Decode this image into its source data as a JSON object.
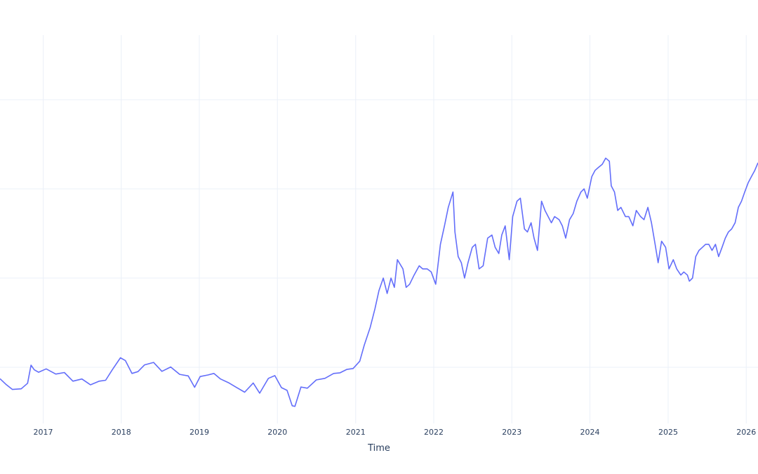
{
  "chart_data": {
    "type": "line",
    "title": "",
    "xlabel": "Time",
    "ylabel": "",
    "grid": true,
    "line_color": "#636efa",
    "x_tick_labels": [
      "2017",
      "2018",
      "2019",
      "2020",
      "2021",
      "2022",
      "2023",
      "2024",
      "2025",
      "2026"
    ],
    "xlim": [
      "2016-06-13",
      "2026-02-25"
    ],
    "ylim": [
      0,
      1
    ],
    "series": [
      {
        "x": [
          "2016-06-13",
          "2016-07-10",
          "2016-08-10",
          "2016-09-20",
          "2016-10-20",
          "2016-11-05",
          "2016-11-20",
          "2016-12-10",
          "2017-01-15",
          "2017-03-01",
          "2017-04-10",
          "2017-05-20",
          "2017-07-01",
          "2017-08-10",
          "2017-09-20",
          "2017-10-20",
          "2017-11-20",
          "2017-12-28",
          "2018-01-20",
          "2018-02-20",
          "2018-03-20",
          "2018-04-20",
          "2018-06-01",
          "2018-07-10",
          "2018-08-20",
          "2018-10-01",
          "2018-11-10",
          "2018-12-10",
          "2019-01-05",
          "2019-02-10",
          "2019-03-10",
          "2019-04-10",
          "2019-05-20",
          "2019-06-20",
          "2019-08-01",
          "2019-09-10",
          "2019-10-10",
          "2019-11-20",
          "2019-12-20",
          "2020-01-20",
          "2020-02-15",
          "2020-03-10",
          "2020-03-23",
          "2020-04-20",
          "2020-05-20",
          "2020-07-01",
          "2020-08-10",
          "2020-09-20",
          "2020-10-20",
          "2020-11-20",
          "2020-12-20",
          "2021-01-20",
          "2021-02-10",
          "2021-03-10",
          "2021-04-01",
          "2021-04-20",
          "2021-05-10",
          "2021-05-28",
          "2021-06-15",
          "2021-07-01",
          "2021-07-15",
          "2021-08-10",
          "2021-08-25",
          "2021-09-10",
          "2021-10-01",
          "2021-10-25",
          "2021-11-10",
          "2021-12-01",
          "2021-12-20",
          "2022-01-10",
          "2022-02-01",
          "2022-02-20",
          "2022-03-10",
          "2022-04-01",
          "2022-04-10",
          "2022-04-25",
          "2022-05-10",
          "2022-05-25",
          "2022-06-10",
          "2022-06-30",
          "2022-07-15",
          "2022-08-01",
          "2022-08-20",
          "2022-09-10",
          "2022-09-30",
          "2022-10-15",
          "2022-11-01",
          "2022-11-15",
          "2022-12-01",
          "2022-12-20",
          "2023-01-05",
          "2023-01-25",
          "2023-02-10",
          "2023-03-01",
          "2023-03-15",
          "2023-04-01",
          "2023-04-15",
          "2023-05-01",
          "2023-05-20",
          "2023-06-05",
          "2023-06-20",
          "2023-07-05",
          "2023-07-20",
          "2023-08-10",
          "2023-08-25",
          "2023-09-10",
          "2023-09-28",
          "2023-10-15",
          "2023-11-01",
          "2023-11-20",
          "2023-12-05",
          "2023-12-20",
          "2024-01-10",
          "2024-01-25",
          "2024-02-10",
          "2024-02-28",
          "2024-03-15",
          "2024-04-01",
          "2024-04-10",
          "2024-04-25",
          "2024-05-10",
          "2024-05-25",
          "2024-06-15",
          "2024-07-01",
          "2024-07-20",
          "2024-08-05",
          "2024-08-25",
          "2024-09-10",
          "2024-09-28",
          "2024-10-15",
          "2024-11-01",
          "2024-11-15",
          "2024-12-01",
          "2024-12-20",
          "2025-01-05",
          "2025-01-25",
          "2025-02-10",
          "2025-03-01",
          "2025-03-15",
          "2025-04-01",
          "2025-04-10",
          "2025-04-25",
          "2025-05-10",
          "2025-05-25",
          "2025-06-10",
          "2025-06-25",
          "2025-07-10",
          "2025-07-25",
          "2025-08-10",
          "2025-08-25",
          "2025-09-10",
          "2025-09-25",
          "2025-10-10",
          "2025-10-25",
          "2025-11-10",
          "2025-11-25",
          "2025-12-10",
          "2025-12-25",
          "2026-01-10",
          "2026-01-25",
          "2026-02-10",
          "2026-02-25"
        ],
        "y": [
          0.093,
          0.075,
          0.058,
          0.06,
          0.078,
          0.137,
          0.122,
          0.114,
          0.125,
          0.108,
          0.113,
          0.085,
          0.092,
          0.073,
          0.085,
          0.088,
          0.122,
          0.161,
          0.152,
          0.11,
          0.116,
          0.138,
          0.146,
          0.117,
          0.131,
          0.107,
          0.102,
          0.065,
          0.1,
          0.105,
          0.11,
          0.092,
          0.079,
          0.066,
          0.049,
          0.079,
          0.046,
          0.094,
          0.103,
          0.064,
          0.055,
          0.005,
          0.003,
          0.066,
          0.062,
          0.089,
          0.094,
          0.11,
          0.112,
          0.123,
          0.126,
          0.15,
          0.202,
          0.26,
          0.32,
          0.38,
          0.42,
          0.37,
          0.42,
          0.39,
          0.48,
          0.45,
          0.39,
          0.4,
          0.43,
          0.46,
          0.45,
          0.45,
          0.44,
          0.4,
          0.53,
          0.59,
          0.65,
          0.7,
          0.57,
          0.49,
          0.47,
          0.42,
          0.47,
          0.52,
          0.53,
          0.45,
          0.46,
          0.55,
          0.56,
          0.52,
          0.5,
          0.56,
          0.59,
          0.48,
          0.62,
          0.67,
          0.68,
          0.58,
          0.57,
          0.6,
          0.55,
          0.51,
          0.67,
          0.64,
          0.62,
          0.6,
          0.62,
          0.61,
          0.59,
          0.55,
          0.61,
          0.63,
          0.67,
          0.7,
          0.71,
          0.68,
          0.75,
          0.77,
          0.78,
          0.79,
          0.81,
          0.8,
          0.72,
          0.7,
          0.64,
          0.65,
          0.62,
          0.62,
          0.59,
          0.64,
          0.62,
          0.61,
          0.65,
          0.6,
          0.53,
          0.47,
          0.54,
          0.52,
          0.45,
          0.48,
          0.45,
          0.43,
          0.44,
          0.43,
          0.41,
          0.42,
          0.49,
          0.51,
          0.52,
          0.53,
          0.53,
          0.51,
          0.53,
          0.49,
          0.52,
          0.55,
          0.57,
          0.58,
          0.6,
          0.65,
          0.67,
          0.7,
          0.73,
          0.75,
          0.77,
          0.795
        ]
      }
    ]
  }
}
